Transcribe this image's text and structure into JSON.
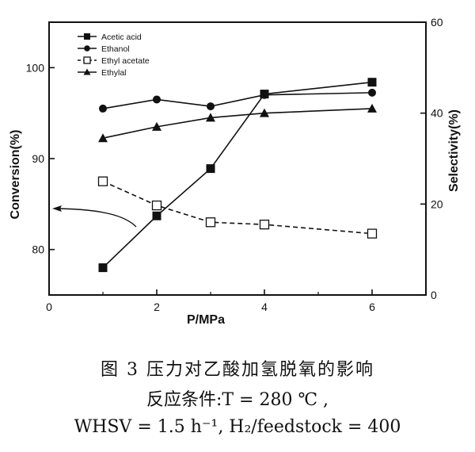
{
  "chart_data": {
    "type": "line",
    "xlabel": "P/MPa",
    "ylabel_left": "Conversion(%)",
    "ylabel_right": "Selectivity(%)",
    "xlim": [
      0,
      7
    ],
    "ylim_left": [
      75,
      105
    ],
    "ylim_right": [
      0,
      60
    ],
    "xticks": [
      0,
      2,
      4,
      6
    ],
    "yticks_left": [
      80,
      90,
      100
    ],
    "yticks_right": [
      0,
      20,
      40,
      60
    ],
    "grid": false,
    "legend_position": "top-left",
    "series": [
      {
        "name": "Acetic acid",
        "axis": "left",
        "marker": "square-filled",
        "line": "solid",
        "x": [
          1,
          2,
          3,
          4,
          6
        ],
        "y": [
          78.0,
          83.7,
          88.9,
          97.1,
          98.4
        ]
      },
      {
        "name": "Ethanol",
        "axis": "right",
        "marker": "circle-filled",
        "line": "solid",
        "x": [
          1,
          2,
          3,
          4,
          6
        ],
        "y": [
          41.0,
          43.0,
          41.5,
          44.0,
          44.5
        ]
      },
      {
        "name": "Ethyl acetate",
        "axis": "right",
        "marker": "square-open",
        "line": "dashed",
        "x": [
          1,
          2,
          3,
          4,
          6
        ],
        "y": [
          25.0,
          19.7,
          16.0,
          15.5,
          13.5
        ]
      },
      {
        "name": "Ethylal",
        "axis": "right",
        "marker": "triangle-filled",
        "line": "solid",
        "x": [
          1,
          2,
          3,
          4,
          6
        ],
        "y": [
          34.5,
          37.0,
          39.0,
          40.0,
          41.0
        ]
      }
    ]
  },
  "caption": {
    "line1": "图 3   压力对乙酸加氢脱氧的影响",
    "line2": "反应条件:T = 280 ℃ ,",
    "line3": "WHSV = 1.5 h⁻¹, H₂/feedstock = 400"
  }
}
